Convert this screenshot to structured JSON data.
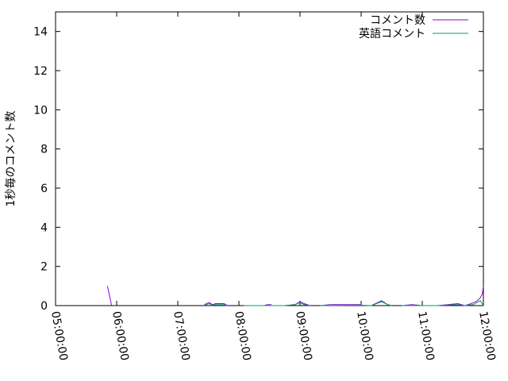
{
  "chart_data": {
    "type": "line",
    "title": "",
    "xlabel": "",
    "ylabel": "1秒毎のコメント数",
    "xlim": [
      "05:00:00",
      "12:00:00"
    ],
    "ylim": [
      0,
      15
    ],
    "x_ticks": [
      "05:00:00",
      "06:00:00",
      "07:00:00",
      "08:00:00",
      "09:00:00",
      "10:00:00",
      "11:00:00",
      "12:00:00"
    ],
    "y_ticks": [
      0,
      2,
      4,
      6,
      8,
      10,
      12,
      14
    ],
    "grid": false,
    "legend_position": "top-right",
    "series": [
      {
        "name": "コメント数",
        "color": "#9400d3",
        "points": [
          [
            "05:51:00",
            1
          ],
          [
            "05:55:00",
            0
          ],
          null,
          [
            "07:25:00",
            0
          ],
          [
            "07:28:00",
            0.1
          ],
          [
            "07:31:00",
            0.15
          ],
          [
            "07:34:00",
            0.05
          ],
          [
            "07:37:00",
            0.1
          ],
          [
            "07:45:00",
            0.1
          ],
          [
            "07:48:00",
            0.05
          ],
          null,
          [
            "08:05:00",
            0
          ],
          [
            "08:25:00",
            0
          ],
          [
            "08:28:00",
            0.05
          ],
          [
            "08:32:00",
            0.05
          ],
          null,
          [
            "08:45:00",
            0
          ],
          [
            "08:55:00",
            0.05
          ],
          [
            "09:00:00",
            0.2
          ],
          [
            "09:04:00",
            0.1
          ],
          [
            "09:10:00",
            0
          ],
          null,
          [
            "09:20:00",
            0
          ],
          [
            "09:30:00",
            0.05
          ],
          [
            "09:40:00",
            0.05
          ],
          [
            "09:50:00",
            0.05
          ],
          [
            "10:00:00",
            0.05
          ],
          null,
          [
            "10:10:00",
            0
          ],
          [
            "10:20:00",
            0.25
          ],
          [
            "10:26:00",
            0.05
          ],
          [
            "10:30:00",
            0
          ],
          null,
          [
            "10:40:00",
            0
          ],
          [
            "10:50:00",
            0.05
          ],
          [
            "11:00:00",
            0
          ],
          null,
          [
            "11:15:00",
            0
          ],
          [
            "11:25:00",
            0.05
          ],
          [
            "11:35:00",
            0.1
          ],
          [
            "11:42:00",
            0
          ],
          [
            "11:48:00",
            0.1
          ],
          [
            "11:53:00",
            0.2
          ],
          [
            "11:57:00",
            0.4
          ],
          [
            "11:59:00",
            0.6
          ],
          [
            "12:00:00",
            1
          ]
        ]
      },
      {
        "name": "英語コメント",
        "color": "#009e73",
        "points": [
          [
            "07:25:00",
            0
          ],
          [
            "07:28:00",
            0.05
          ],
          [
            "07:31:00",
            0.1
          ],
          [
            "07:34:00",
            0.02
          ],
          [
            "07:37:00",
            0.05
          ],
          [
            "07:45:00",
            0.05
          ],
          [
            "07:48:00",
            0
          ],
          null,
          [
            "08:05:00",
            0
          ],
          [
            "08:45:00",
            0
          ],
          [
            "08:55:00",
            0.05
          ],
          [
            "09:00:00",
            0.15
          ],
          [
            "09:04:00",
            0.05
          ],
          [
            "09:10:00",
            0
          ],
          null,
          [
            "09:20:00",
            0
          ],
          [
            "10:00:00",
            0.02
          ],
          [
            "10:10:00",
            0
          ],
          [
            "10:20:00",
            0.2
          ],
          [
            "10:26:00",
            0.05
          ],
          [
            "10:30:00",
            0
          ],
          null,
          [
            "10:40:00",
            0
          ],
          [
            "11:00:00",
            0
          ],
          [
            "11:15:00",
            0
          ],
          [
            "11:35:00",
            0.05
          ],
          [
            "11:42:00",
            0
          ],
          [
            "11:50:00",
            0.05
          ],
          [
            "11:57:00",
            0.25
          ],
          [
            "12:00:00",
            0
          ]
        ]
      }
    ]
  }
}
